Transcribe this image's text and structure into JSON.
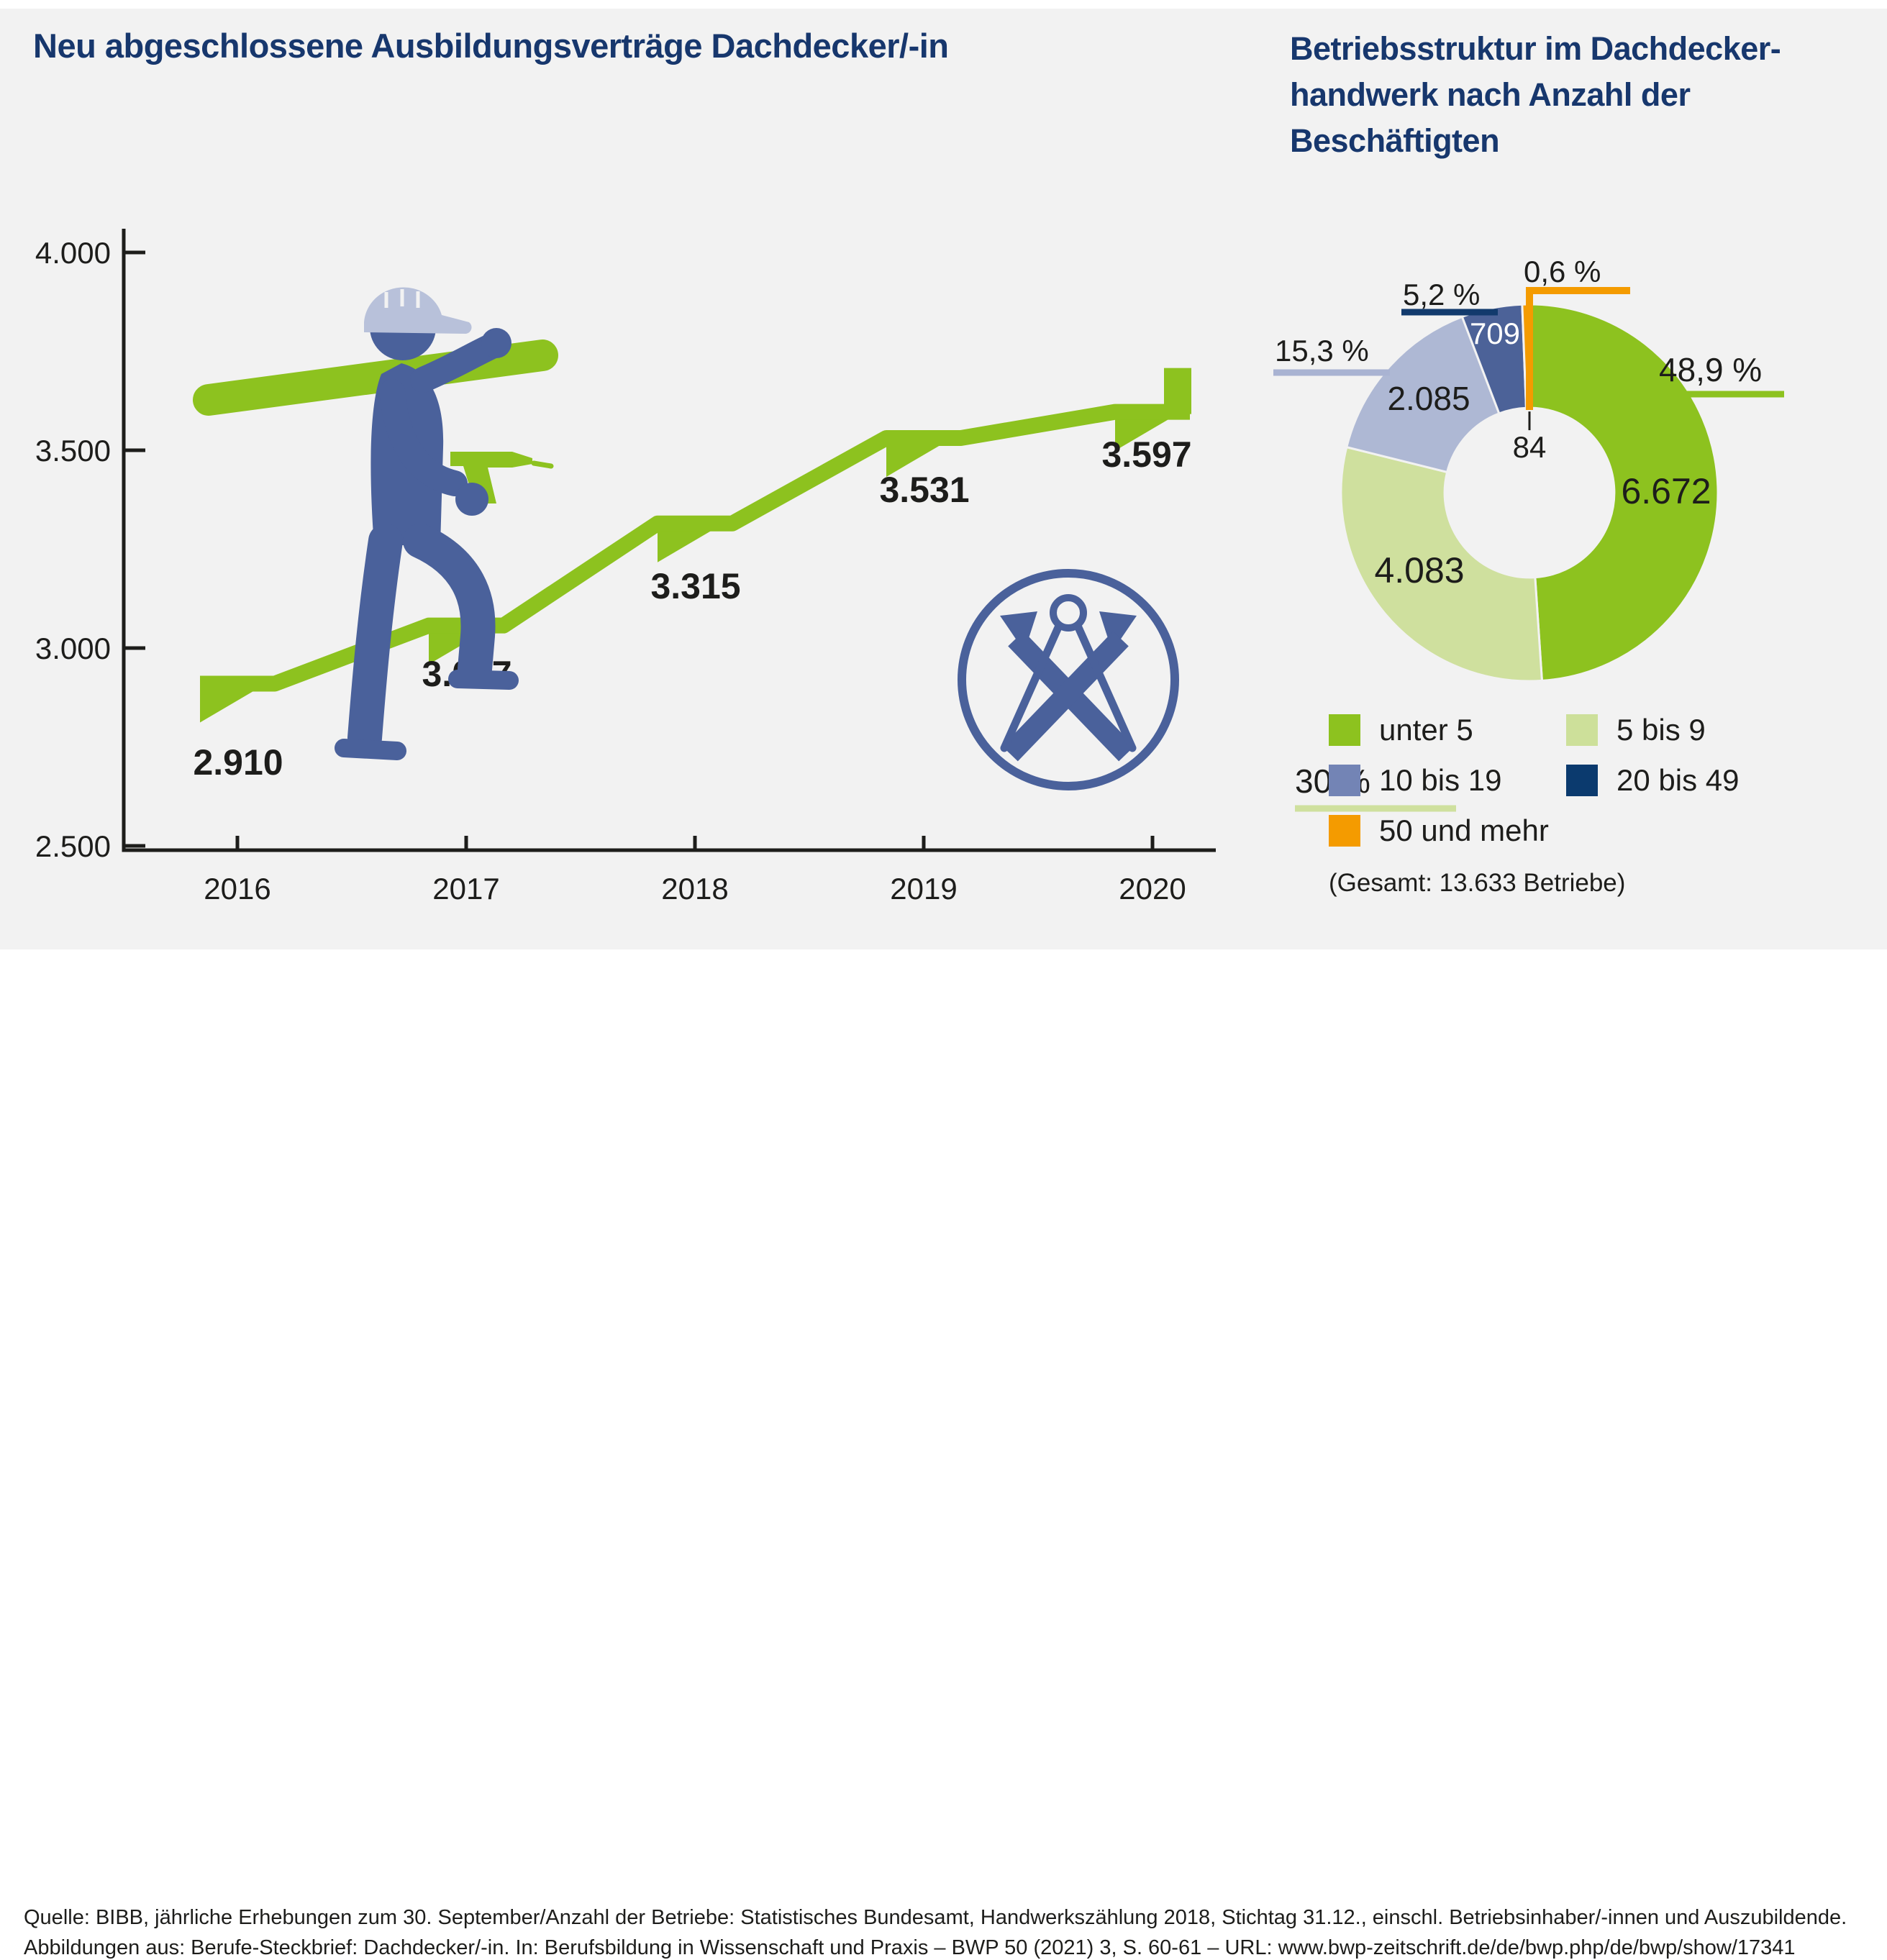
{
  "left_chart": {
    "title": "Neu abgeschlossene Ausbildungsverträge Dachdecker/-in"
  },
  "right_chart": {
    "title_lines": [
      "Betriebsstruktur im Dachdecker-",
      "handwerk nach Anzahl der",
      "Beschäftigten"
    ],
    "total_note": "(Gesamt: 13.633 Betriebe)"
  },
  "footer": {
    "line1": "Quelle: BIBB, jährliche Erhebungen zum 30. September/Anzahl der Betriebe: Statistisches Bundesamt, Handwerkszählung 2018, Stichtag 31.12., einschl. Betriebsinhaber/-innen und Auszubildende.",
    "line2": "Abbildungen aus: Berufe-Steckbrief: Dachdecker/-in. In: Berufsbildung in Wissenschaft und Praxis – BWP 50 (2021) 3, S. 60-61 – URL: www.bwp-zeitschrift.de/de/bwp.php/de/bwp/show/17341"
  },
  "colors": {
    "background": "#f2f2f2",
    "title_navy": "#17376d",
    "text": "#1d1d1b",
    "green": "#8dc21f",
    "light_green": "#cfe09e",
    "periwinkle": "#aeb8d4",
    "navy": "#4c6298",
    "navy_dark": "#0b3a6e",
    "orange": "#f49b00",
    "figure_blue": "#4a619b",
    "helmet_gray_blue": "#b8c1da"
  },
  "decorations": {
    "worker_pictogram": "construction-worker-carrying-beam-and-drill",
    "emblem": "dachdecker-guild-emblem"
  },
  "chart_data": [
    {
      "type": "line",
      "style": "staircase-step-chart",
      "title": "Neu abgeschlossene Ausbildungsverträge Dachdecker/-in",
      "x": [
        2016,
        2017,
        2018,
        2019,
        2020
      ],
      "x_labels": [
        "2016",
        "2017",
        "2018",
        "2019",
        "2020"
      ],
      "values": [
        2910,
        3057,
        3315,
        3531,
        3597
      ],
      "value_labels": [
        "2.910",
        "3.057",
        "3.315",
        "3.531",
        "3.597"
      ],
      "xlabel": "",
      "ylabel": "",
      "ylim": [
        2500,
        4000
      ],
      "ytick_values": [
        4000,
        3500,
        3000,
        2500
      ],
      "ytick_labels": [
        "4.000",
        "3.500",
        "3.000",
        "2.500"
      ],
      "grid": false,
      "line_color": "#8dc21f"
    },
    {
      "type": "pie",
      "style": "donut",
      "title": "Betriebsstruktur im Dachdeckerhandwerk nach Anzahl der Beschäftigten",
      "total": 13633,
      "donut_hole_ratio": 0.45,
      "legend_position": "below",
      "slices": [
        {
          "label": "unter 5",
          "value": 6672,
          "value_label": "6.672",
          "pct": 48.9,
          "pct_label": "48,9 %",
          "color": "#8dc21f",
          "legend_color": "#8dc21f",
          "callout_color": "#8dc21f",
          "value_text_color": "#1d1d1b"
        },
        {
          "label": "5 bis 9",
          "value": 4083,
          "value_label": "4.083",
          "pct": 30.0,
          "pct_label": "30 %",
          "color": "#cfe09e",
          "legend_color": "#cde09a",
          "callout_color": "#cfe09e",
          "value_text_color": "#1d1d1b"
        },
        {
          "label": "10 bis 19",
          "value": 2085,
          "value_label": "2.085",
          "pct": 15.3,
          "pct_label": "15,3 %",
          "color": "#aeb8d4",
          "legend_color": "#7384b5",
          "callout_color": "#a9b3d2",
          "value_text_color": "#1d1d1b"
        },
        {
          "label": "20 bis 49",
          "value": 709,
          "value_label": "709",
          "pct": 5.2,
          "pct_label": "5,2 %",
          "color": "#4c6298",
          "legend_color": "#0b3a6e",
          "callout_color": "#123a6d",
          "value_text_color": "#ffffff"
        },
        {
          "label": "50 und mehr",
          "value": 84,
          "value_label": "84",
          "pct": 0.6,
          "pct_label": "0,6 %",
          "color": "#f49b00",
          "legend_color": "#f49b00",
          "callout_color": "#f49b00",
          "value_text_color": "#1d1d1b"
        }
      ]
    }
  ]
}
